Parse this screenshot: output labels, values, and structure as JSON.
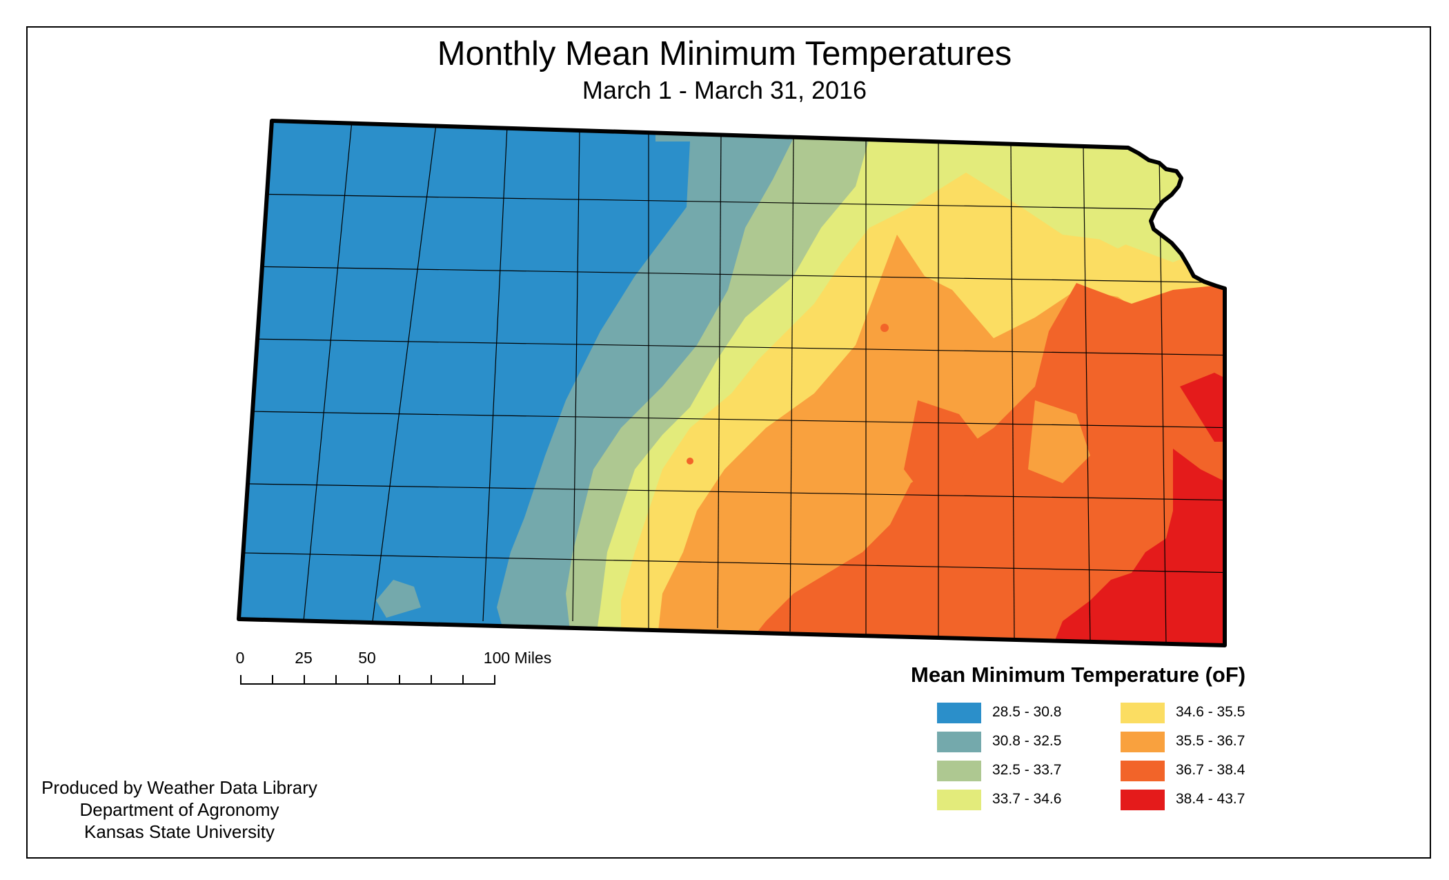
{
  "title": "Monthly Mean Minimum Temperatures",
  "subtitle": "March 1 - March 31, 2016",
  "scale": {
    "labels": [
      "0",
      "25",
      "50",
      "100 Miles"
    ]
  },
  "legend": {
    "title": "Mean Minimum Temperature (oF)",
    "classes": [
      {
        "label": "28.5 - 30.8",
        "color": "#2b8fca"
      },
      {
        "label": "30.8 - 32.5",
        "color": "#74a9ac"
      },
      {
        "label": "32.5 - 33.7",
        "color": "#aec891"
      },
      {
        "label": "33.7 - 34.6",
        "color": "#e3eb7b"
      },
      {
        "label": "34.6 - 35.5",
        "color": "#fbdd62"
      },
      {
        "label": "35.5 - 36.7",
        "color": "#f9a13e"
      },
      {
        "label": "36.7 - 38.4",
        "color": "#f26429"
      },
      {
        "label": "38.4 - 43.7",
        "color": "#e41b1b"
      }
    ]
  },
  "credit": {
    "line1": "Produced by Weather Data Library",
    "line2": "Department of Agronomy",
    "line3": "Kansas State University"
  }
}
